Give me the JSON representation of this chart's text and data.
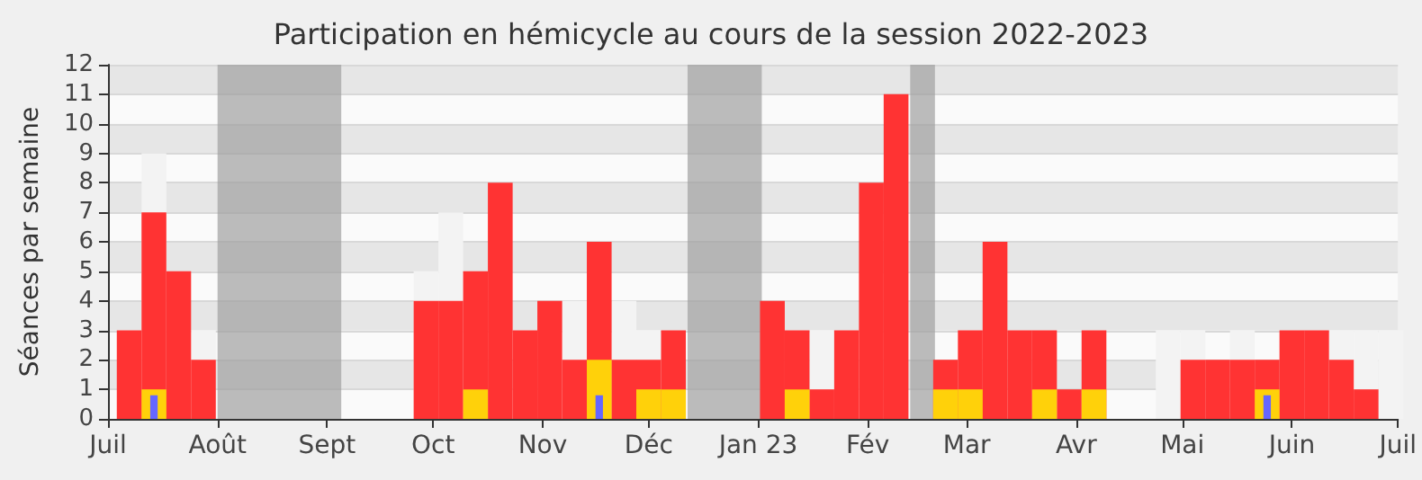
{
  "chart_data": {
    "type": "bar",
    "title": "Participation en hémicycle au cours de la session 2022-2023",
    "ylabel": "Séances par semaine",
    "x": [
      "2022-07-07",
      "2022-07-14",
      "2022-07-21",
      "2022-07-28",
      "2022-08-04",
      "2022-08-11",
      "2022-08-18",
      "2022-08-25",
      "2022-09-01",
      "2022-09-08",
      "2022-09-15",
      "2022-09-22",
      "2022-09-29",
      "2022-10-06",
      "2022-10-13",
      "2022-10-20",
      "2022-10-27",
      "2022-11-03",
      "2022-11-10",
      "2022-11-17",
      "2022-11-24",
      "2022-12-01",
      "2022-12-08",
      "2022-12-15",
      "2022-12-22",
      "2022-12-29",
      "2023-01-05",
      "2023-01-12",
      "2023-01-19",
      "2023-01-26",
      "2023-02-02",
      "2023-02-09",
      "2023-02-16",
      "2023-02-23",
      "2023-03-02",
      "2023-03-09",
      "2023-03-16",
      "2023-03-23",
      "2023-03-30",
      "2023-04-06",
      "2023-04-13",
      "2023-04-20",
      "2023-04-27",
      "2023-05-04",
      "2023-05-11",
      "2023-05-18",
      "2023-05-25",
      "2023-06-01",
      "2023-06-08",
      "2023-06-15",
      "2023-06-22",
      "2023-06-29"
    ],
    "series": [
      {
        "color": "#f3f3f3",
        "values": [
          null,
          9,
          null,
          3,
          null,
          null,
          null,
          null,
          null,
          null,
          null,
          null,
          5,
          7,
          null,
          null,
          null,
          null,
          4,
          null,
          4,
          3,
          null,
          null,
          null,
          null,
          null,
          null,
          3,
          null,
          null,
          null,
          null,
          null,
          null,
          null,
          null,
          null,
          null,
          null,
          null,
          null,
          3,
          3,
          null,
          3,
          null,
          null,
          null,
          3,
          3,
          3
        ]
      },
      {
        "color": "#ff3333",
        "values": [
          3,
          7,
          5,
          2,
          null,
          null,
          null,
          null,
          null,
          null,
          null,
          null,
          4,
          4,
          5,
          8,
          3,
          4,
          2,
          6,
          2,
          2,
          3,
          null,
          null,
          null,
          4,
          3,
          1,
          3,
          8,
          11,
          null,
          2,
          3,
          6,
          3,
          3,
          1,
          3,
          null,
          null,
          null,
          2,
          2,
          2,
          2,
          3,
          3,
          2,
          1,
          null
        ]
      },
      {
        "color": "#ffd10a",
        "values": [
          null,
          1,
          null,
          null,
          null,
          null,
          null,
          null,
          null,
          null,
          null,
          null,
          null,
          null,
          1,
          null,
          null,
          null,
          null,
          2,
          null,
          1,
          1,
          null,
          null,
          null,
          null,
          1,
          null,
          null,
          null,
          null,
          null,
          1,
          1,
          null,
          null,
          1,
          null,
          1,
          null,
          null,
          null,
          null,
          null,
          null,
          1,
          null,
          null,
          null,
          null,
          null
        ]
      },
      {
        "color": "#6666ff",
        "values": [
          null,
          0.8,
          null,
          null,
          null,
          null,
          null,
          null,
          null,
          null,
          null,
          null,
          null,
          null,
          null,
          null,
          null,
          null,
          null,
          0.8,
          null,
          null,
          null,
          null,
          null,
          null,
          null,
          null,
          null,
          null,
          null,
          null,
          null,
          null,
          null,
          null,
          null,
          null,
          null,
          null,
          null,
          null,
          null,
          null,
          null,
          null,
          0.8,
          null,
          null,
          null,
          null,
          null
        ]
      }
    ],
    "bands": [
      {
        "axis": "x",
        "from": "2022-08-01",
        "to": "2022-09-05",
        "color": "#a0a0a0"
      },
      {
        "axis": "x",
        "from": "2022-12-12",
        "to": "2023-01-02",
        "color": "#a0a0a0"
      },
      {
        "axis": "x",
        "from": "2023-02-13",
        "to": "2023-02-20",
        "color": "#a0a0a0"
      }
    ],
    "xlim": [
      "2022-07-01",
      "2023-07-01"
    ],
    "xticks": [
      {
        "value": "2022-07-01",
        "label": "Juil"
      },
      {
        "value": "2022-08-01",
        "label": "Août"
      },
      {
        "value": "2022-09-01",
        "label": "Sept"
      },
      {
        "value": "2022-10-01",
        "label": "Oct"
      },
      {
        "value": "2022-11-01",
        "label": "Nov"
      },
      {
        "value": "2022-12-01",
        "label": "Déc"
      },
      {
        "value": "2023-01-01",
        "label": "Jan 23"
      },
      {
        "value": "2023-02-01",
        "label": "Fév"
      },
      {
        "value": "2023-03-01",
        "label": "Mar"
      },
      {
        "value": "2023-04-01",
        "label": "Avr"
      },
      {
        "value": "2023-05-01",
        "label": "Mai"
      },
      {
        "value": "2023-06-01",
        "label": "Juin"
      },
      {
        "value": "2023-07-01",
        "label": "Juil"
      }
    ],
    "ylim": [
      0,
      12
    ],
    "yticks": [
      0,
      1,
      2,
      3,
      4,
      5,
      6,
      7,
      8,
      9,
      10,
      11,
      12
    ],
    "grid": "y"
  }
}
